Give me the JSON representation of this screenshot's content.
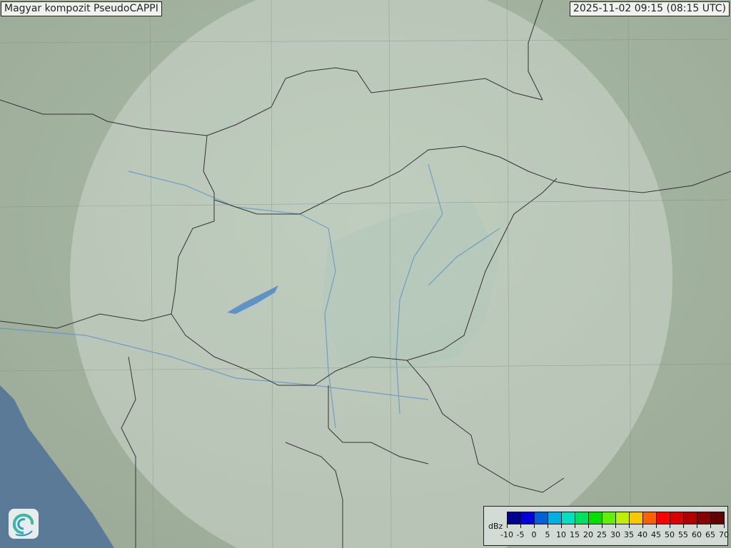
{
  "title": "Magyar kompozit  PseudoCAPPI",
  "timestamp": "2025-11-02 09:15 (08:15 UTC)",
  "legend": {
    "unit": "dBz",
    "ticks": [
      "-10",
      "-5",
      "0",
      "5",
      "10",
      "15",
      "20",
      "25",
      "30",
      "35",
      "40",
      "45",
      "50",
      "55",
      "60",
      "65",
      "70"
    ],
    "colors": [
      "#000090",
      "#0000d8",
      "#0060d8",
      "#00b0e0",
      "#00e0c0",
      "#00e060",
      "#00e000",
      "#60f000",
      "#c0f000",
      "#f8c800",
      "#ff6000",
      "#ff0000",
      "#d80000",
      "#b00000",
      "#880000",
      "#600000"
    ]
  },
  "map": {
    "land_color": "#a7b5a2",
    "sea_color": "#5b7a98",
    "radar_coverage_color": "#e8efe8",
    "border_color": "#333333",
    "river_color": "#5f93c8"
  },
  "logo": {
    "icon": "swirl-logo-icon"
  }
}
